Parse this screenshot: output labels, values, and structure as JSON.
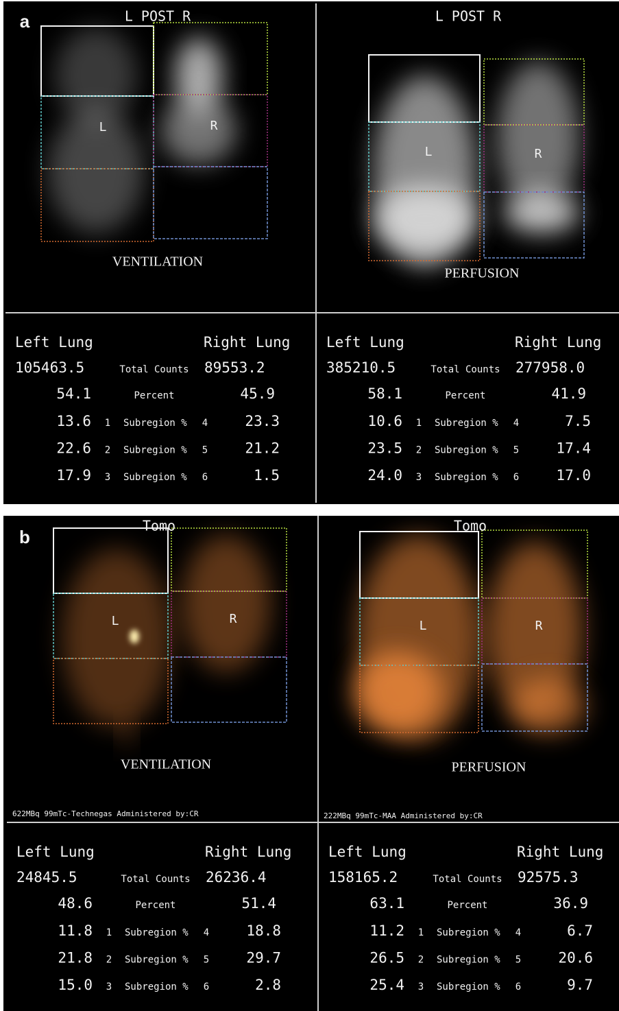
{
  "panels": [
    {
      "label": "a",
      "views": [
        {
          "header": "L POST R",
          "left_marker": "L",
          "right_marker": "R",
          "caption": "VENTILATION",
          "table": {
            "left_title": "Left Lung",
            "right_title": "Right Lung",
            "totals": {
              "left": "105463.5",
              "label": "Total Counts",
              "right": "89553.2"
            },
            "percent": {
              "left": "54.1",
              "label": "Percent",
              "right": "45.9"
            },
            "subregions": [
              {
                "left": "13.6",
                "left_id": "1",
                "label": "Subregion %",
                "right_id": "4",
                "right": "23.3"
              },
              {
                "left": "22.6",
                "left_id": "2",
                "label": "Subregion %",
                "right_id": "5",
                "right": "21.2"
              },
              {
                "left": "17.9",
                "left_id": "3",
                "label": "Subregion %",
                "right_id": "6",
                "right": "1.5"
              }
            ]
          }
        },
        {
          "header": "L POST R",
          "left_marker": "L",
          "right_marker": "R",
          "caption": "PERFUSION",
          "table": {
            "left_title": "Left Lung",
            "right_title": "Right Lung",
            "totals": {
              "left": "385210.5",
              "label": "Total Counts",
              "right": "277958.0"
            },
            "percent": {
              "left": "58.1",
              "label": "Percent",
              "right": "41.9"
            },
            "subregions": [
              {
                "left": "10.6",
                "left_id": "1",
                "label": "Subregion %",
                "right_id": "4",
                "right": "7.5"
              },
              {
                "left": "23.5",
                "left_id": "2",
                "label": "Subregion %",
                "right_id": "5",
                "right": "17.4"
              },
              {
                "left": "24.0",
                "left_id": "3",
                "label": "Subregion %",
                "right_id": "6",
                "right": "17.0"
              }
            ]
          }
        }
      ]
    },
    {
      "label": "b",
      "views": [
        {
          "header": "Tomo",
          "left_marker": "L",
          "right_marker": "R",
          "caption": "VENTILATION",
          "footnote": "622MBq 99mTc-Technegas Administered by:CR",
          "table": {
            "left_title": "Left Lung",
            "right_title": "Right Lung",
            "totals": {
              "left": "24845.5",
              "label": "Total Counts",
              "right": "26236.4"
            },
            "percent": {
              "left": "48.6",
              "label": "Percent",
              "right": "51.4"
            },
            "subregions": [
              {
                "left": "11.8",
                "left_id": "1",
                "label": "Subregion %",
                "right_id": "4",
                "right": "18.8"
              },
              {
                "left": "21.8",
                "left_id": "2",
                "label": "Subregion %",
                "right_id": "5",
                "right": "29.7"
              },
              {
                "left": "15.0",
                "left_id": "3",
                "label": "Subregion %",
                "right_id": "6",
                "right": "2.8"
              }
            ]
          }
        },
        {
          "header": "Tomo",
          "left_marker": "L",
          "right_marker": "R",
          "caption": "PERFUSION",
          "footnote": "222MBq 99mTc-MAA Administered by:CR",
          "table": {
            "left_title": "Left Lung",
            "right_title": "Right Lung",
            "totals": {
              "left": "158165.2",
              "label": "Total Counts",
              "right": "92575.3"
            },
            "percent": {
              "left": "63.1",
              "label": "Percent",
              "right": "36.9"
            },
            "subregions": [
              {
                "left": "11.2",
                "left_id": "1",
                "label": "Subregion %",
                "right_id": "4",
                "right": "6.7"
              },
              {
                "left": "26.5",
                "left_id": "2",
                "label": "Subregion %",
                "right_id": "5",
                "right": "20.6"
              },
              {
                "left": "25.4",
                "left_id": "3",
                "label": "Subregion %",
                "right_id": "6",
                "right": "9.7"
              }
            ]
          }
        }
      ]
    }
  ]
}
